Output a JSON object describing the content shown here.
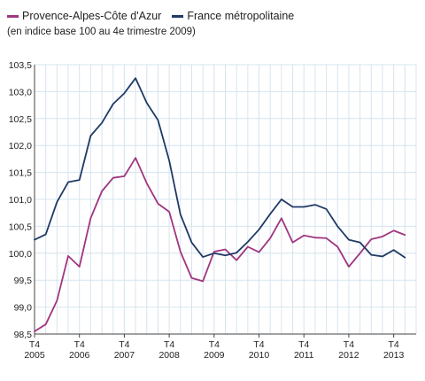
{
  "legend": {
    "series_a": "Provence-Alpes-Côte d'Azur",
    "series_b": "France métropolitaine"
  },
  "subtitle": "(en indice base 100 au 4e trimestre 2009)",
  "colors": {
    "series_a": "#a0357f",
    "series_b": "#1f3a64",
    "grid": "#d6e4ee",
    "axis": "#444444"
  },
  "chart_data": {
    "type": "line",
    "title": "",
    "ylim": [
      98.5,
      103.5
    ],
    "y_ticks": [
      "98,5",
      "99,0",
      "99,5",
      "100,0",
      "100,5",
      "101,0",
      "101,5",
      "102,0",
      "102,5",
      "103,0",
      "103,5"
    ],
    "x_ticks": [
      {
        "label": "T4",
        "year": "2005"
      },
      {
        "label": "T4",
        "year": "2006"
      },
      {
        "label": "T4",
        "year": "2007"
      },
      {
        "label": "T4",
        "year": "2008"
      },
      {
        "label": "T4",
        "year": "2009"
      },
      {
        "label": "T4",
        "year": "2010"
      },
      {
        "label": "T4",
        "year": "2011"
      },
      {
        "label": "T4",
        "year": "2012"
      },
      {
        "label": "T4",
        "year": "2013"
      }
    ],
    "x": [
      "2005T4",
      "2006T1",
      "2006T2",
      "2006T3",
      "2006T4",
      "2007T1",
      "2007T2",
      "2007T3",
      "2007T4",
      "2008T1",
      "2008T2",
      "2008T3",
      "2008T4",
      "2009T1",
      "2009T2",
      "2009T3",
      "2009T4",
      "2010T1",
      "2010T2",
      "2010T3",
      "2010T4",
      "2011T1",
      "2011T2",
      "2011T3",
      "2011T4",
      "2012T1",
      "2012T2",
      "2012T3",
      "2012T4",
      "2013T1",
      "2013T2",
      "2013T3",
      "2013T4",
      "2014T1",
      "2014T2"
    ],
    "series": [
      {
        "name": "Provence-Alpes-Côte d'Azur",
        "values": [
          98.55,
          98.68,
          99.12,
          99.95,
          99.75,
          100.65,
          101.15,
          101.4,
          101.43,
          101.77,
          101.3,
          100.92,
          100.77,
          100.03,
          99.54,
          99.48,
          100.03,
          100.07,
          99.87,
          100.12,
          100.02,
          100.28,
          100.65,
          100.2,
          100.33,
          100.29,
          100.28,
          100.12,
          99.75,
          100.0,
          100.26,
          100.31,
          100.42,
          100.34,
          null
        ]
      },
      {
        "name": "France métropolitaine",
        "values": [
          100.25,
          100.35,
          100.95,
          101.32,
          101.36,
          102.18,
          102.42,
          102.77,
          102.97,
          103.25,
          102.79,
          102.47,
          101.72,
          100.72,
          100.2,
          99.93,
          100.0,
          99.96,
          100.01,
          100.21,
          100.44,
          100.73,
          101.0,
          100.86,
          100.86,
          100.9,
          100.82,
          100.5,
          100.25,
          100.2,
          99.97,
          99.94,
          100.06,
          99.92,
          null
        ]
      }
    ]
  }
}
